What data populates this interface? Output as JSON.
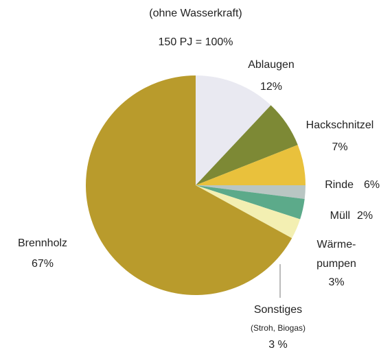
{
  "chart_data": {
    "type": "pie",
    "title": "(ohne Wasserkraft)",
    "subtitle": "150 PJ = 100%",
    "categories": [
      "Ablaugen",
      "Hackschnitzel",
      "Rinde",
      "Müll",
      [
        "Wärme-",
        "pumpen"
      ],
      "Sonstiges",
      "Brennholz"
    ],
    "values": [
      12,
      7,
      6,
      2,
      3,
      3,
      67
    ],
    "value_labels": [
      "12%",
      "7%",
      "6%",
      "2%",
      "3%",
      "3 %",
      "67%"
    ],
    "colors": [
      "#e9e9f1",
      "#7d8935",
      "#e9c13c",
      "#b9c6c3",
      "#5caa8a",
      "#f3efb2",
      "#b99b2c"
    ],
    "annotation": "(Stroh, Biogas)"
  }
}
